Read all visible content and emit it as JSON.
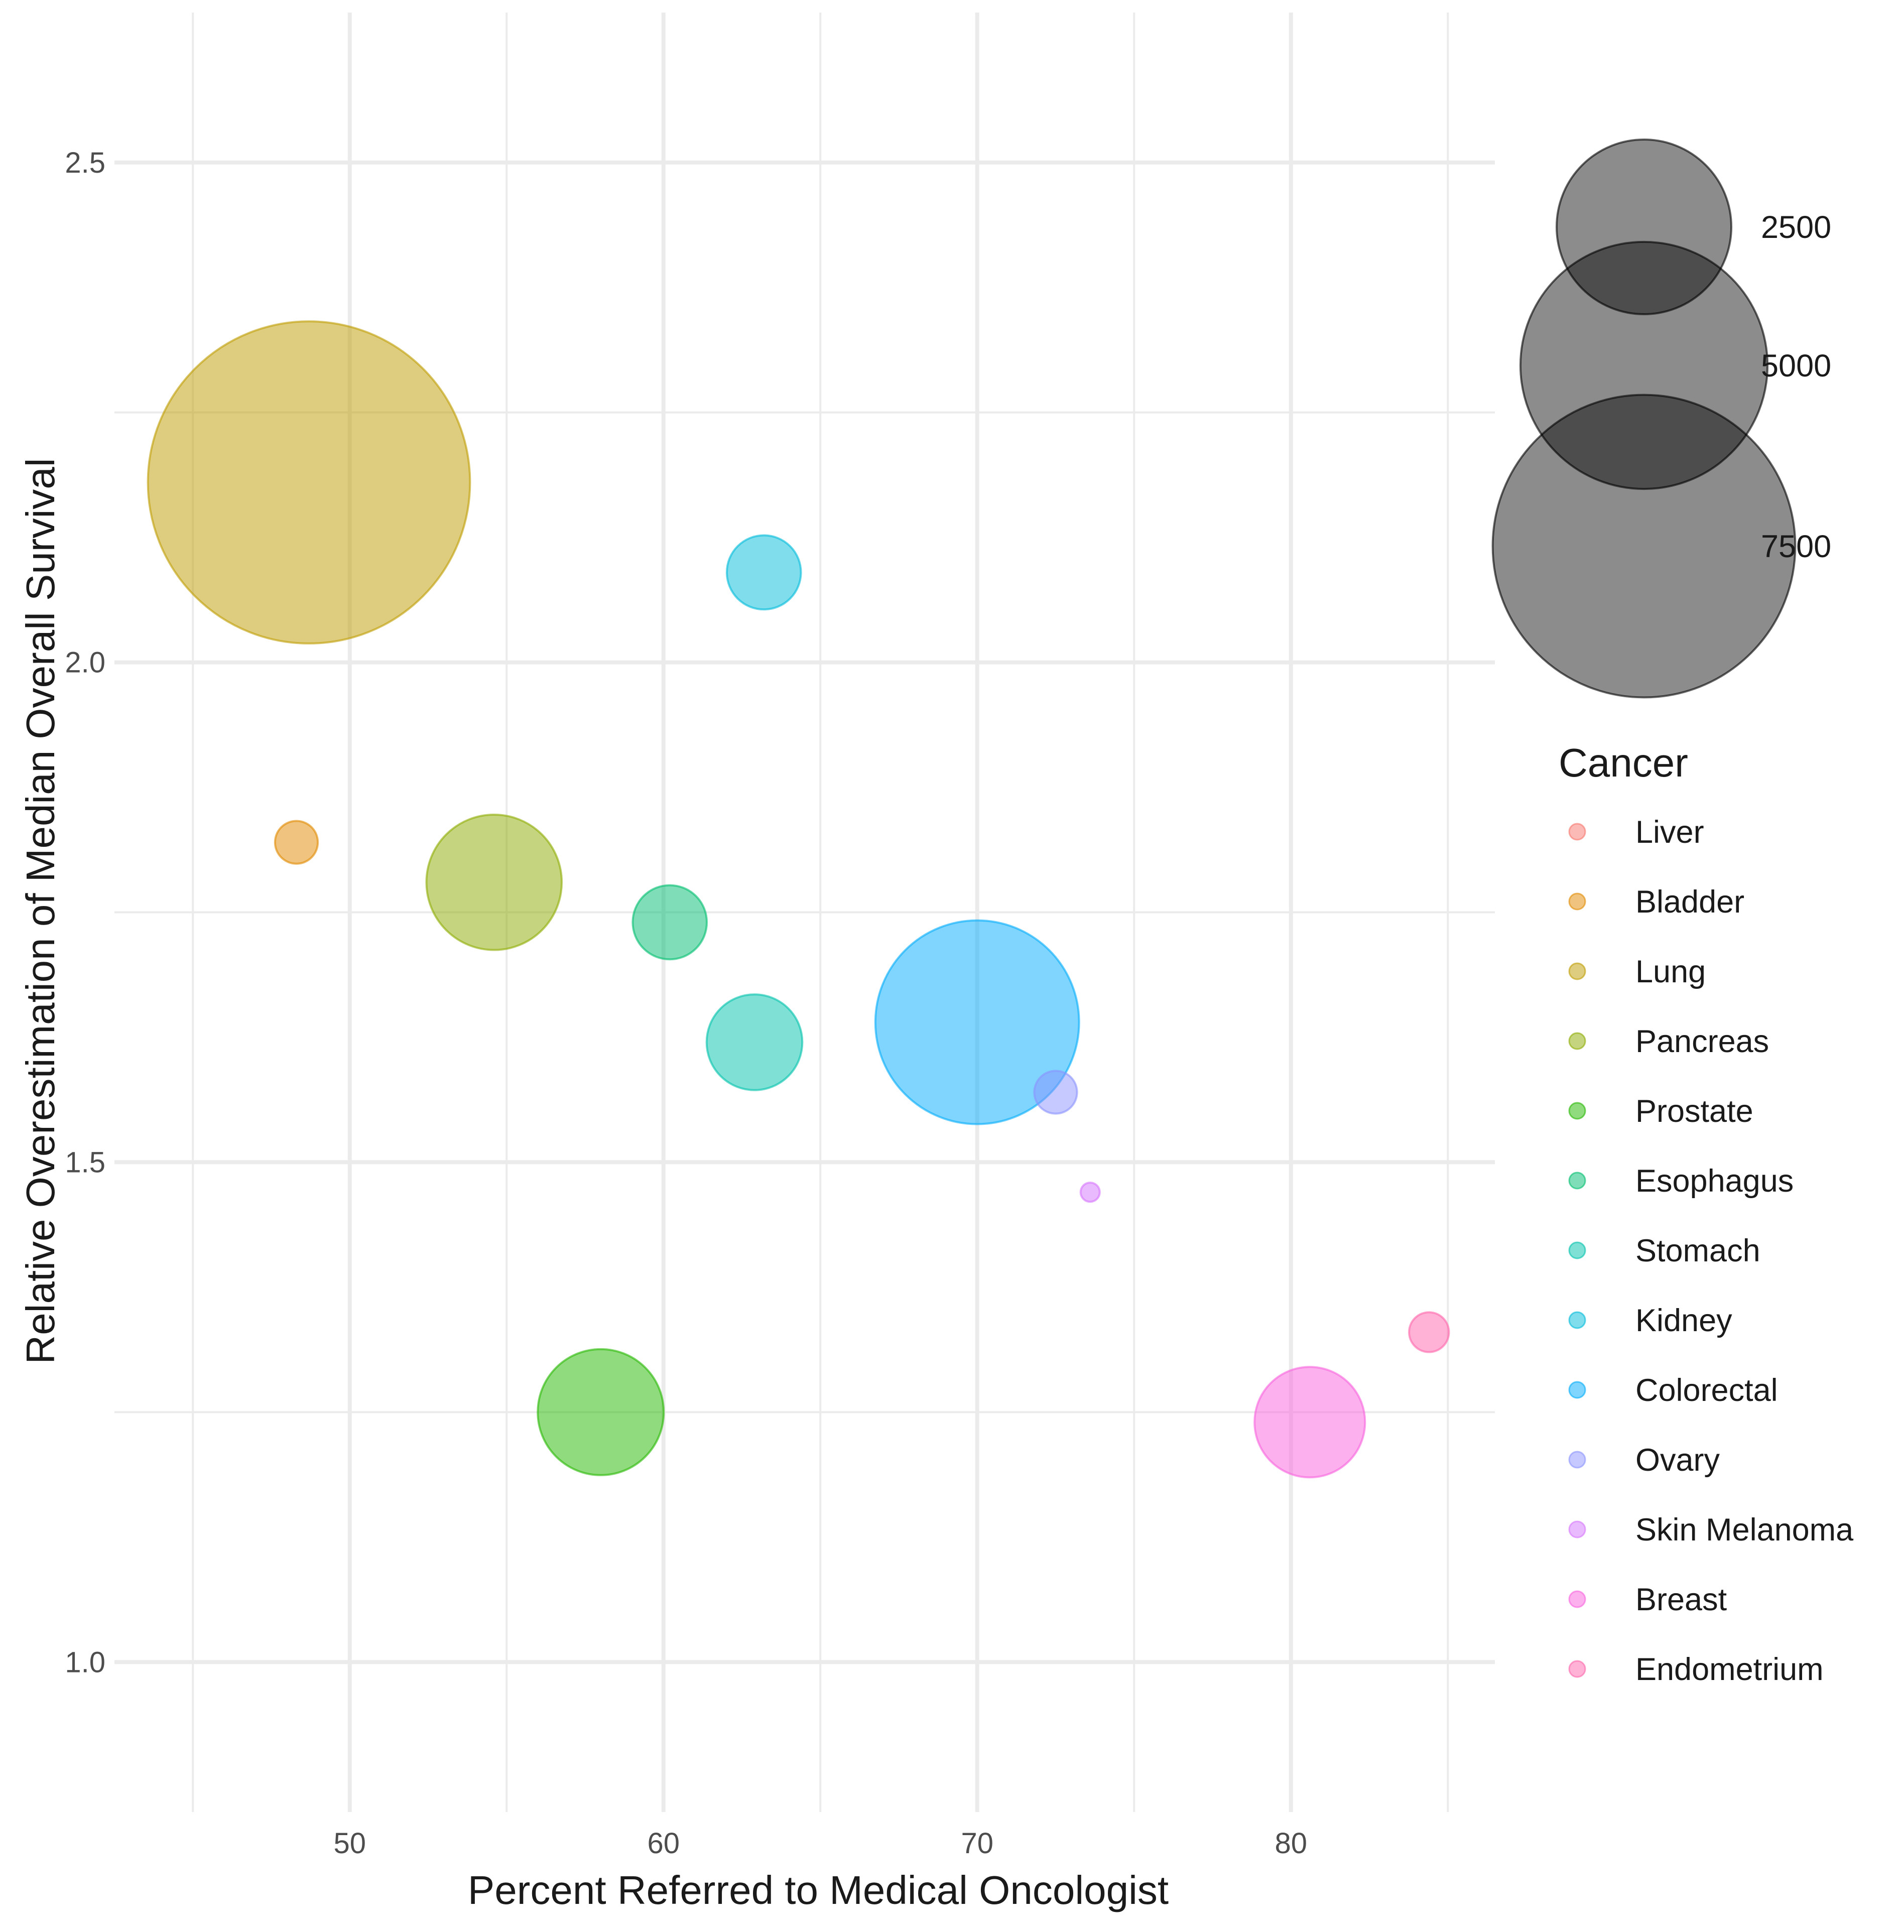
{
  "chart_data": {
    "type": "scatter",
    "subtype": "bubble",
    "title": "",
    "xlabel": "Percent Referred to Medical Oncologist",
    "ylabel": "Relative Overestimation of Median Overall Survival",
    "xlim": [
      42.5,
      86.5
    ],
    "ylim": [
      0.85,
      2.65
    ],
    "x_ticks": [
      50,
      60,
      70,
      80
    ],
    "x_tick_labels": [
      "50",
      "60",
      "70",
      "80"
    ],
    "x_minor_ticks": [
      45,
      55,
      65,
      75,
      85
    ],
    "y_ticks": [
      1.0,
      1.5,
      2.0,
      2.5
    ],
    "y_tick_labels": [
      "1.0",
      "1.5",
      "2.0",
      "2.5"
    ],
    "y_minor_ticks": [
      1.25,
      1.75,
      2.25
    ],
    "grid": true,
    "theme": "minimal",
    "point_alpha": 0.5,
    "size_legend": {
      "title": "",
      "values": [
        2500,
        5000,
        7500
      ],
      "labels": [
        "2500",
        "5000",
        "7500"
      ],
      "color": "#000000"
    },
    "color_legend": {
      "title": "Cancer",
      "placement": "right"
    },
    "series": [
      {
        "name": "Liver",
        "color": "#F8766D",
        "x": null,
        "y": null,
        "size": null
      },
      {
        "name": "Bladder",
        "color": "#E18A00",
        "x": 48.3,
        "y": 1.82,
        "size": 150
      },
      {
        "name": "Lung",
        "color": "#BE9C00",
        "x": 48.7,
        "y": 2.18,
        "size": 8500
      },
      {
        "name": "Pancreas",
        "color": "#8CAB00",
        "x": 54.6,
        "y": 1.78,
        "size": 1500
      },
      {
        "name": "Prostate",
        "color": "#24B700",
        "x": 58.0,
        "y": 1.25,
        "size": 1300
      },
      {
        "name": "Esophagus",
        "color": "#00BE70",
        "x": 60.2,
        "y": 1.74,
        "size": 450
      },
      {
        "name": "Stomach",
        "color": "#00C1AB",
        "x": 62.9,
        "y": 1.62,
        "size": 750
      },
      {
        "name": "Kidney",
        "color": "#00BBDA",
        "x": 63.2,
        "y": 2.09,
        "size": 450
      },
      {
        "name": "Colorectal",
        "color": "#00ACFC",
        "x": 70.0,
        "y": 1.64,
        "size": 3400
      },
      {
        "name": "Ovary",
        "color": "#8B93FF",
        "x": 72.5,
        "y": 1.57,
        "size": 150
      },
      {
        "name": "Skin Melanoma",
        "color": "#D575FE",
        "x": 73.6,
        "y": 1.47,
        "size": 30
      },
      {
        "name": "Breast",
        "color": "#F962DD",
        "x": 80.6,
        "y": 1.24,
        "size": 1000
      },
      {
        "name": "Endometrium",
        "color": "#FF65AC",
        "x": 84.4,
        "y": 1.33,
        "size": 130
      }
    ]
  }
}
